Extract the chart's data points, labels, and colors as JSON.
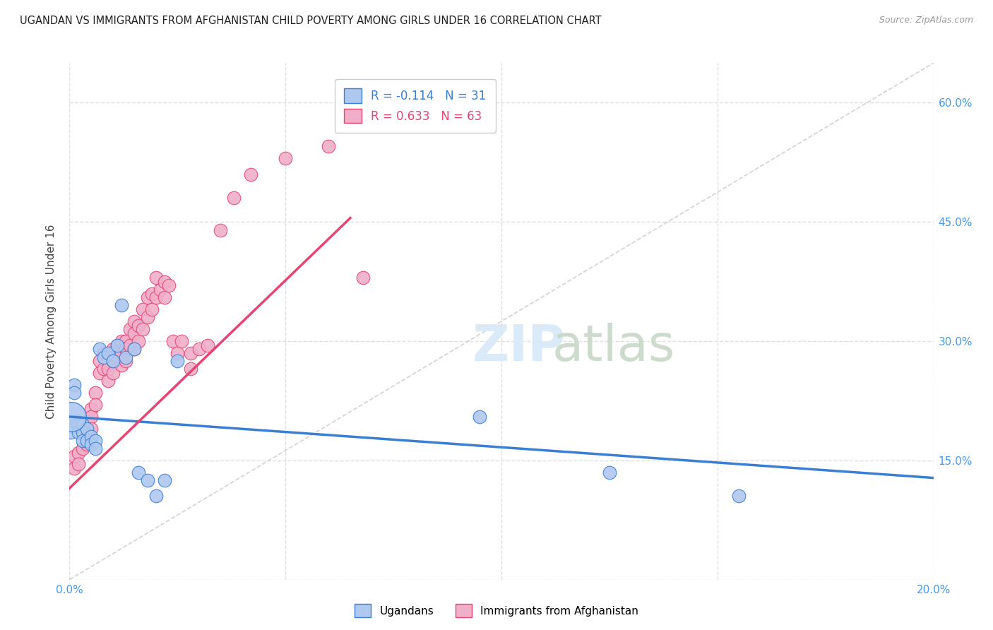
{
  "title": "UGANDAN VS IMMIGRANTS FROM AFGHANISTAN CHILD POVERTY AMONG GIRLS UNDER 16 CORRELATION CHART",
  "source": "Source: ZipAtlas.com",
  "ylabel": "Child Poverty Among Girls Under 16",
  "xlim": [
    0.0,
    0.2
  ],
  "ylim": [
    0.0,
    0.65
  ],
  "ugandan_R": -0.114,
  "ugandan_N": 31,
  "afghan_R": 0.633,
  "afghan_N": 63,
  "ugandan_color": "#aec8f0",
  "afghan_color": "#f0aec8",
  "ugandan_line_color": "#3a7fd4",
  "afghan_line_color": "#e84472",
  "diagonal_color": "#c8c8c8",
  "ugandan_x": [
    0.0005,
    0.001,
    0.001,
    0.0015,
    0.002,
    0.002,
    0.003,
    0.003,
    0.003,
    0.004,
    0.004,
    0.005,
    0.005,
    0.006,
    0.006,
    0.007,
    0.008,
    0.009,
    0.01,
    0.011,
    0.012,
    0.013,
    0.015,
    0.016,
    0.018,
    0.02,
    0.022,
    0.025,
    0.095,
    0.125,
    0.155
  ],
  "ugandan_y": [
    0.185,
    0.245,
    0.235,
    0.2,
    0.195,
    0.185,
    0.195,
    0.185,
    0.175,
    0.19,
    0.175,
    0.18,
    0.17,
    0.175,
    0.165,
    0.29,
    0.28,
    0.285,
    0.275,
    0.295,
    0.345,
    0.28,
    0.29,
    0.135,
    0.125,
    0.105,
    0.125,
    0.275,
    0.205,
    0.135,
    0.105
  ],
  "afghan_x": [
    0.001,
    0.001,
    0.002,
    0.002,
    0.003,
    0.003,
    0.004,
    0.004,
    0.005,
    0.005,
    0.005,
    0.006,
    0.006,
    0.007,
    0.007,
    0.008,
    0.008,
    0.009,
    0.009,
    0.009,
    0.01,
    0.01,
    0.01,
    0.011,
    0.011,
    0.012,
    0.012,
    0.012,
    0.013,
    0.013,
    0.013,
    0.014,
    0.014,
    0.015,
    0.015,
    0.015,
    0.016,
    0.016,
    0.017,
    0.017,
    0.018,
    0.018,
    0.019,
    0.019,
    0.02,
    0.02,
    0.021,
    0.022,
    0.022,
    0.023,
    0.024,
    0.025,
    0.026,
    0.028,
    0.028,
    0.03,
    0.032,
    0.035,
    0.038,
    0.042,
    0.05,
    0.06,
    0.068
  ],
  "afghan_y": [
    0.155,
    0.14,
    0.16,
    0.145,
    0.185,
    0.165,
    0.185,
    0.17,
    0.215,
    0.205,
    0.19,
    0.235,
    0.22,
    0.275,
    0.26,
    0.285,
    0.265,
    0.275,
    0.265,
    0.25,
    0.29,
    0.275,
    0.26,
    0.295,
    0.28,
    0.3,
    0.285,
    0.27,
    0.3,
    0.29,
    0.275,
    0.315,
    0.295,
    0.325,
    0.31,
    0.29,
    0.32,
    0.3,
    0.34,
    0.315,
    0.355,
    0.33,
    0.36,
    0.34,
    0.38,
    0.355,
    0.365,
    0.375,
    0.355,
    0.37,
    0.3,
    0.285,
    0.3,
    0.285,
    0.265,
    0.29,
    0.295,
    0.44,
    0.48,
    0.51,
    0.53,
    0.545,
    0.38
  ],
  "ugandan_line_x": [
    0.0,
    0.2
  ],
  "ugandan_line_y": [
    0.205,
    0.128
  ],
  "afghan_line_x": [
    0.0,
    0.065
  ],
  "afghan_line_y": [
    0.115,
    0.455
  ],
  "background_color": "#ffffff",
  "grid_color": "#e0e0e0"
}
